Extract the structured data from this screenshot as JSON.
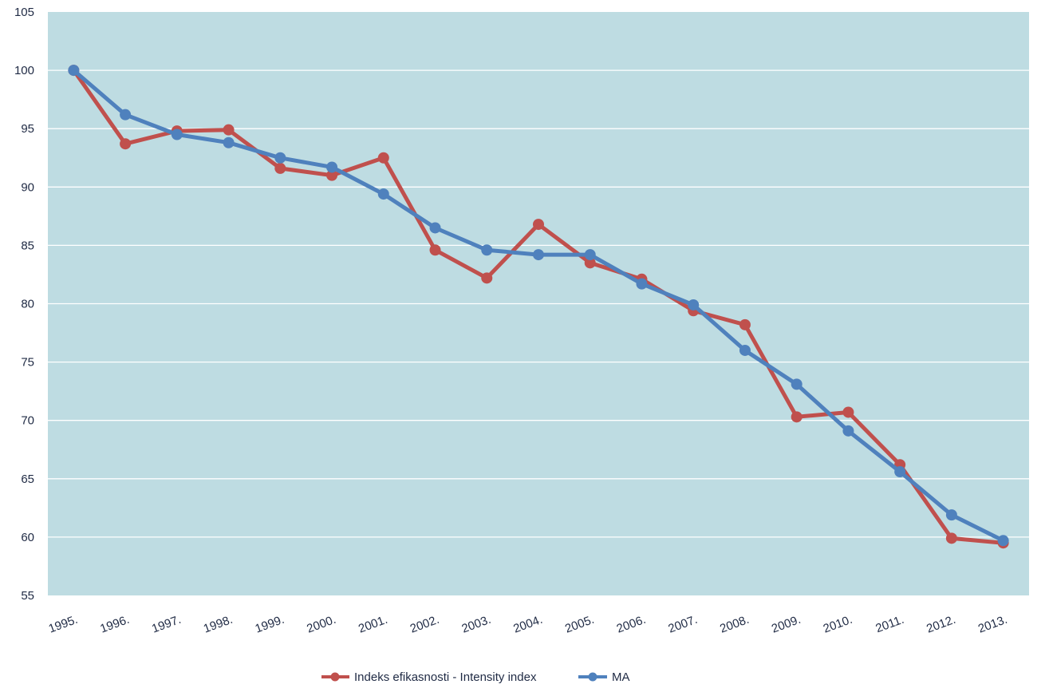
{
  "chart_data": {
    "type": "line",
    "title": "",
    "xlabel": "",
    "ylabel": "",
    "categories": [
      "1995.",
      "1996.",
      "1997.",
      "1998.",
      "1999.",
      "2000.",
      "2001.",
      "2002.",
      "2003.",
      "2004.",
      "2005.",
      "2006.",
      "2007.",
      "2008.",
      "2009.",
      "2010.",
      "2011.",
      "2012.",
      "2013."
    ],
    "ylim": [
      55,
      105
    ],
    "yticks": [
      55,
      60,
      65,
      70,
      75,
      80,
      85,
      90,
      95,
      100,
      105
    ],
    "grid": true,
    "legend_position": "bottom",
    "plot_background": "#bedce2",
    "series": [
      {
        "name": "Indeks efikasnosti - Intensity index",
        "color": "#c0504d",
        "values": [
          100,
          93.7,
          94.8,
          94.9,
          91.6,
          91.0,
          92.5,
          84.6,
          82.2,
          86.8,
          83.5,
          82.1,
          79.4,
          78.2,
          70.3,
          70.7,
          66.2,
          59.9,
          59.5
        ]
      },
      {
        "name": "MA",
        "color": "#4f81bd",
        "values": [
          100,
          96.2,
          94.5,
          93.8,
          92.5,
          91.7,
          89.4,
          86.5,
          84.6,
          84.2,
          84.2,
          81.7,
          79.9,
          76.0,
          73.1,
          69.1,
          65.6,
          61.9,
          59.7
        ]
      }
    ]
  }
}
